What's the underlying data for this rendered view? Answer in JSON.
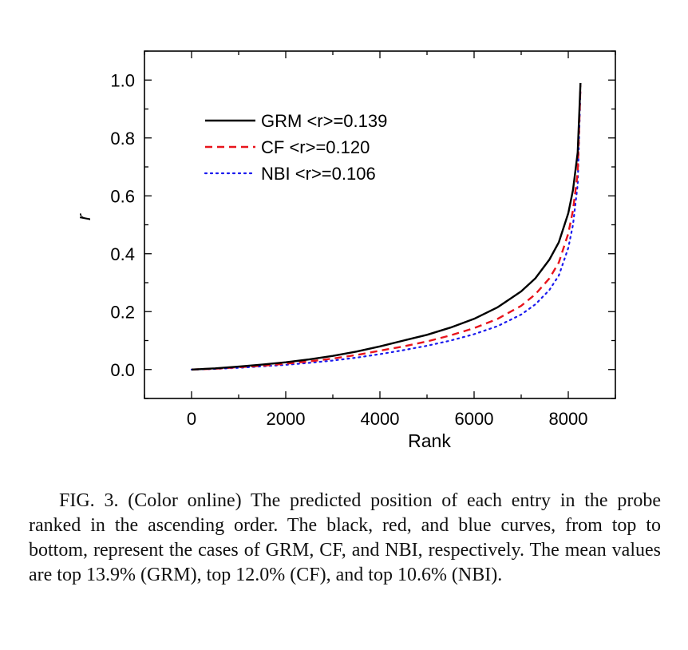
{
  "chart_data": {
    "type": "line",
    "xlabel": "Rank",
    "ylabel": "r",
    "xlim": [
      -1000,
      9000
    ],
    "ylim": [
      -0.1,
      1.1
    ],
    "xticks": [
      0,
      2000,
      4000,
      6000,
      8000
    ],
    "xtick_labels": [
      "0",
      "2000",
      "4000",
      "6000",
      "8000"
    ],
    "yticks": [
      0.0,
      0.2,
      0.4,
      0.6,
      0.8,
      1.0
    ],
    "ytick_labels": [
      "0.0",
      "0.2",
      "0.4",
      "0.6",
      "0.8",
      "1.0"
    ],
    "grid": false,
    "legend_position": "top-left",
    "series": [
      {
        "name": "GRM <r>=0.139",
        "color": "#000000",
        "style": "solid",
        "x": [
          0,
          500,
          1000,
          1500,
          2000,
          2500,
          3000,
          3500,
          4000,
          4500,
          5000,
          5500,
          6000,
          6500,
          7000,
          7300,
          7600,
          7800,
          8000,
          8100,
          8200,
          8260
        ],
        "y": [
          0.0,
          0.004,
          0.01,
          0.017,
          0.025,
          0.035,
          0.047,
          0.062,
          0.08,
          0.1,
          0.12,
          0.145,
          0.175,
          0.215,
          0.27,
          0.315,
          0.38,
          0.44,
          0.54,
          0.62,
          0.75,
          0.99
        ]
      },
      {
        "name": "CF <r>=0.120",
        "color": "#e8141c",
        "style": "dashed",
        "x": [
          0,
          500,
          1000,
          1500,
          2000,
          2500,
          3000,
          3500,
          4000,
          4500,
          5000,
          5500,
          6000,
          6500,
          7000,
          7300,
          7600,
          7800,
          8000,
          8100,
          8200,
          8260
        ],
        "y": [
          0.0,
          0.003,
          0.008,
          0.013,
          0.02,
          0.028,
          0.038,
          0.05,
          0.065,
          0.08,
          0.097,
          0.118,
          0.143,
          0.175,
          0.22,
          0.26,
          0.315,
          0.37,
          0.47,
          0.55,
          0.68,
          0.98
        ]
      },
      {
        "name": "NBI <r>=0.106",
        "color": "#1a1aee",
        "style": "dotted",
        "x": [
          0,
          500,
          1000,
          1500,
          2000,
          2500,
          3000,
          3500,
          4000,
          4500,
          5000,
          5500,
          6000,
          6500,
          7000,
          7300,
          7600,
          7800,
          8000,
          8100,
          8200,
          8260
        ],
        "y": [
          0.0,
          0.002,
          0.006,
          0.011,
          0.016,
          0.023,
          0.031,
          0.041,
          0.053,
          0.067,
          0.082,
          0.1,
          0.122,
          0.15,
          0.19,
          0.225,
          0.275,
          0.325,
          0.42,
          0.5,
          0.64,
          0.97
        ]
      }
    ]
  },
  "caption": {
    "text": "FIG. 3. (Color online) The predicted position of each entry in the probe ranked in the ascending order. The black, red, and blue curves, from top to bottom, represent the cases of GRM, CF, and NBI, respectively. The mean values are top 13.9% (GRM), top 12.0% (CF), and top 10.6% (NBI)."
  }
}
